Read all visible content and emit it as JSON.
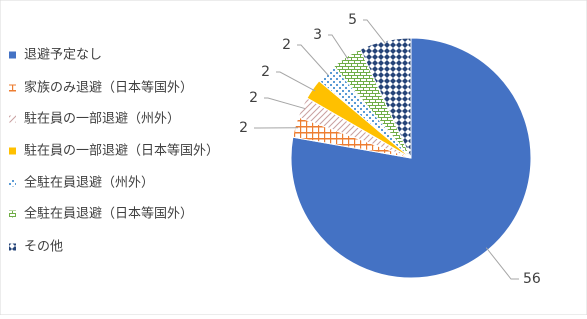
{
  "chart_data": {
    "type": "pie",
    "categories": [
      "退避予定なし",
      "家族のみ退避（日本等国外）",
      "駐在員の一部退避（州外）",
      "駐在員の一部退避（日本等国外）",
      "全駐在員退避（州外）",
      "全駐在員退避（日本等国外）",
      "その他"
    ],
    "values": [
      56,
      2,
      2,
      2,
      2,
      3,
      5
    ],
    "colors": [
      "#4472c4",
      "#ed7d31",
      "#c9a0a0",
      "#ffc000",
      "#5b9bd5",
      "#70ad47",
      "#264478"
    ],
    "legend": "left"
  }
}
